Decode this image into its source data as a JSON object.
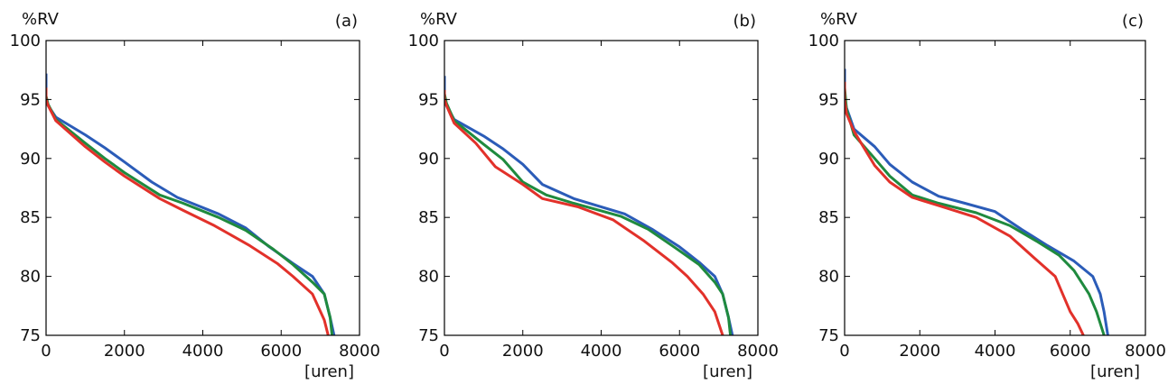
{
  "chart_data": [
    {
      "type": "line",
      "panel_label": "(a)",
      "ylabel": "%RV",
      "xlabel": "[uren]",
      "xlim": [
        0,
        8000
      ],
      "ylim": [
        75,
        100
      ],
      "xticks": [
        "0",
        "2000",
        "4000",
        "6000",
        "8000"
      ],
      "yticks": [
        "75",
        "80",
        "85",
        "90",
        "95",
        "100"
      ],
      "grid": false,
      "series": [
        {
          "color": "#2b5cb8",
          "x": [
            0,
            0,
            50,
            250,
            1000,
            1500,
            2000,
            2700,
            3350,
            4400,
            5100,
            5700,
            6300,
            6800,
            7100,
            7250,
            7350
          ],
          "y": [
            97.2,
            95.0,
            94.5,
            93.5,
            92.0,
            90.9,
            89.7,
            88.0,
            86.7,
            85.3,
            84.1,
            82.5,
            81.1,
            80.0,
            78.5,
            76.5,
            75
          ]
        },
        {
          "color": "#1f8a3e",
          "x": [
            0,
            50,
            250,
            1000,
            1500,
            2000,
            2900,
            3500,
            4400,
            5100,
            5800,
            6300,
            6800,
            7100,
            7250,
            7300
          ],
          "y": [
            95.3,
            94.6,
            93.3,
            91.3,
            90.0,
            88.8,
            86.9,
            86.2,
            85.0,
            83.9,
            82.3,
            81.0,
            79.5,
            78.5,
            76.5,
            75
          ]
        },
        {
          "color": "#e2312a",
          "x": [
            0,
            0,
            50,
            250,
            1000,
            1500,
            2000,
            2900,
            3500,
            4300,
            5200,
            5900,
            6300,
            6800,
            7100,
            7200
          ],
          "y": [
            96.0,
            95.0,
            94.5,
            93.2,
            91.0,
            89.7,
            88.5,
            86.6,
            85.6,
            84.3,
            82.6,
            81.1,
            80.0,
            78.5,
            76.3,
            75
          ]
        }
      ]
    },
    {
      "type": "line",
      "panel_label": "(b)",
      "ylabel": "%RV",
      "xlabel": "[uren]",
      "xlim": [
        0,
        8000
      ],
      "ylim": [
        75,
        100
      ],
      "xticks": [
        "0",
        "2000",
        "4000",
        "6000",
        "8000"
      ],
      "yticks": [
        "75",
        "80",
        "85",
        "90",
        "95",
        "100"
      ],
      "grid": false,
      "series": [
        {
          "color": "#2b5cb8",
          "x": [
            0,
            0,
            50,
            250,
            1000,
            1500,
            2000,
            2500,
            3300,
            4600,
            5300,
            6000,
            6500,
            6900,
            7100,
            7250,
            7350
          ],
          "y": [
            97.0,
            95.0,
            94.5,
            93.3,
            91.9,
            90.8,
            89.5,
            87.8,
            86.6,
            85.3,
            84.0,
            82.5,
            81.2,
            80.0,
            78.5,
            76.5,
            75
          ]
        },
        {
          "color": "#1f8a3e",
          "x": [
            0,
            50,
            250,
            1000,
            1500,
            2000,
            2600,
            3300,
            4500,
            5200,
            5900,
            6500,
            6900,
            7100,
            7250,
            7300
          ],
          "y": [
            95.5,
            94.7,
            93.2,
            91.2,
            89.9,
            88.0,
            86.9,
            86.2,
            85.1,
            84.0,
            82.4,
            81.0,
            79.5,
            78.5,
            76.5,
            75
          ]
        },
        {
          "color": "#e2312a",
          "x": [
            0,
            0,
            50,
            250,
            800,
            1300,
            2000,
            2500,
            3400,
            4300,
            5100,
            5800,
            6200,
            6600,
            6900,
            7100
          ],
          "y": [
            95.8,
            95.0,
            94.5,
            93.0,
            91.3,
            89.3,
            87.8,
            86.6,
            85.9,
            84.8,
            83.0,
            81.2,
            80.0,
            78.5,
            77.0,
            75
          ]
        }
      ]
    },
    {
      "type": "line",
      "panel_label": "(c)",
      "ylabel": "%RV",
      "xlabel": "[uren]",
      "xlim": [
        0,
        8000
      ],
      "ylim": [
        75,
        100
      ],
      "xticks": [
        "0",
        "2000",
        "4000",
        "6000",
        "8000"
      ],
      "yticks": [
        "75",
        "80",
        "85",
        "90",
        "95",
        "100"
      ],
      "grid": false,
      "series": [
        {
          "color": "#2b5cb8",
          "x": [
            0,
            0,
            50,
            250,
            800,
            1200,
            1800,
            2500,
            3200,
            4000,
            4700,
            5400,
            6100,
            6600,
            6800,
            6900,
            7000
          ],
          "y": [
            97.6,
            95.0,
            94.3,
            92.5,
            91.0,
            89.5,
            88.0,
            86.8,
            86.2,
            85.5,
            84.0,
            82.6,
            81.3,
            80.0,
            78.5,
            77.0,
            75
          ]
        },
        {
          "color": "#1f8a3e",
          "x": [
            0,
            50,
            250,
            800,
            1200,
            1800,
            2500,
            3500,
            4400,
            5100,
            5700,
            6100,
            6500,
            6700,
            6900
          ],
          "y": [
            96.0,
            94.2,
            92.0,
            90.0,
            88.5,
            86.9,
            86.2,
            85.4,
            84.3,
            83.0,
            81.8,
            80.5,
            78.5,
            77.0,
            75
          ]
        },
        {
          "color": "#e2312a",
          "x": [
            0,
            0,
            50,
            250,
            800,
            1200,
            1800,
            2500,
            3500,
            4400,
            5100,
            5600,
            5800,
            6000,
            6200,
            6350
          ],
          "y": [
            96.5,
            95.0,
            93.8,
            92.3,
            89.4,
            88.0,
            86.7,
            86.0,
            85.0,
            83.4,
            81.4,
            80.0,
            78.5,
            77.0,
            76.0,
            75
          ]
        }
      ]
    }
  ]
}
